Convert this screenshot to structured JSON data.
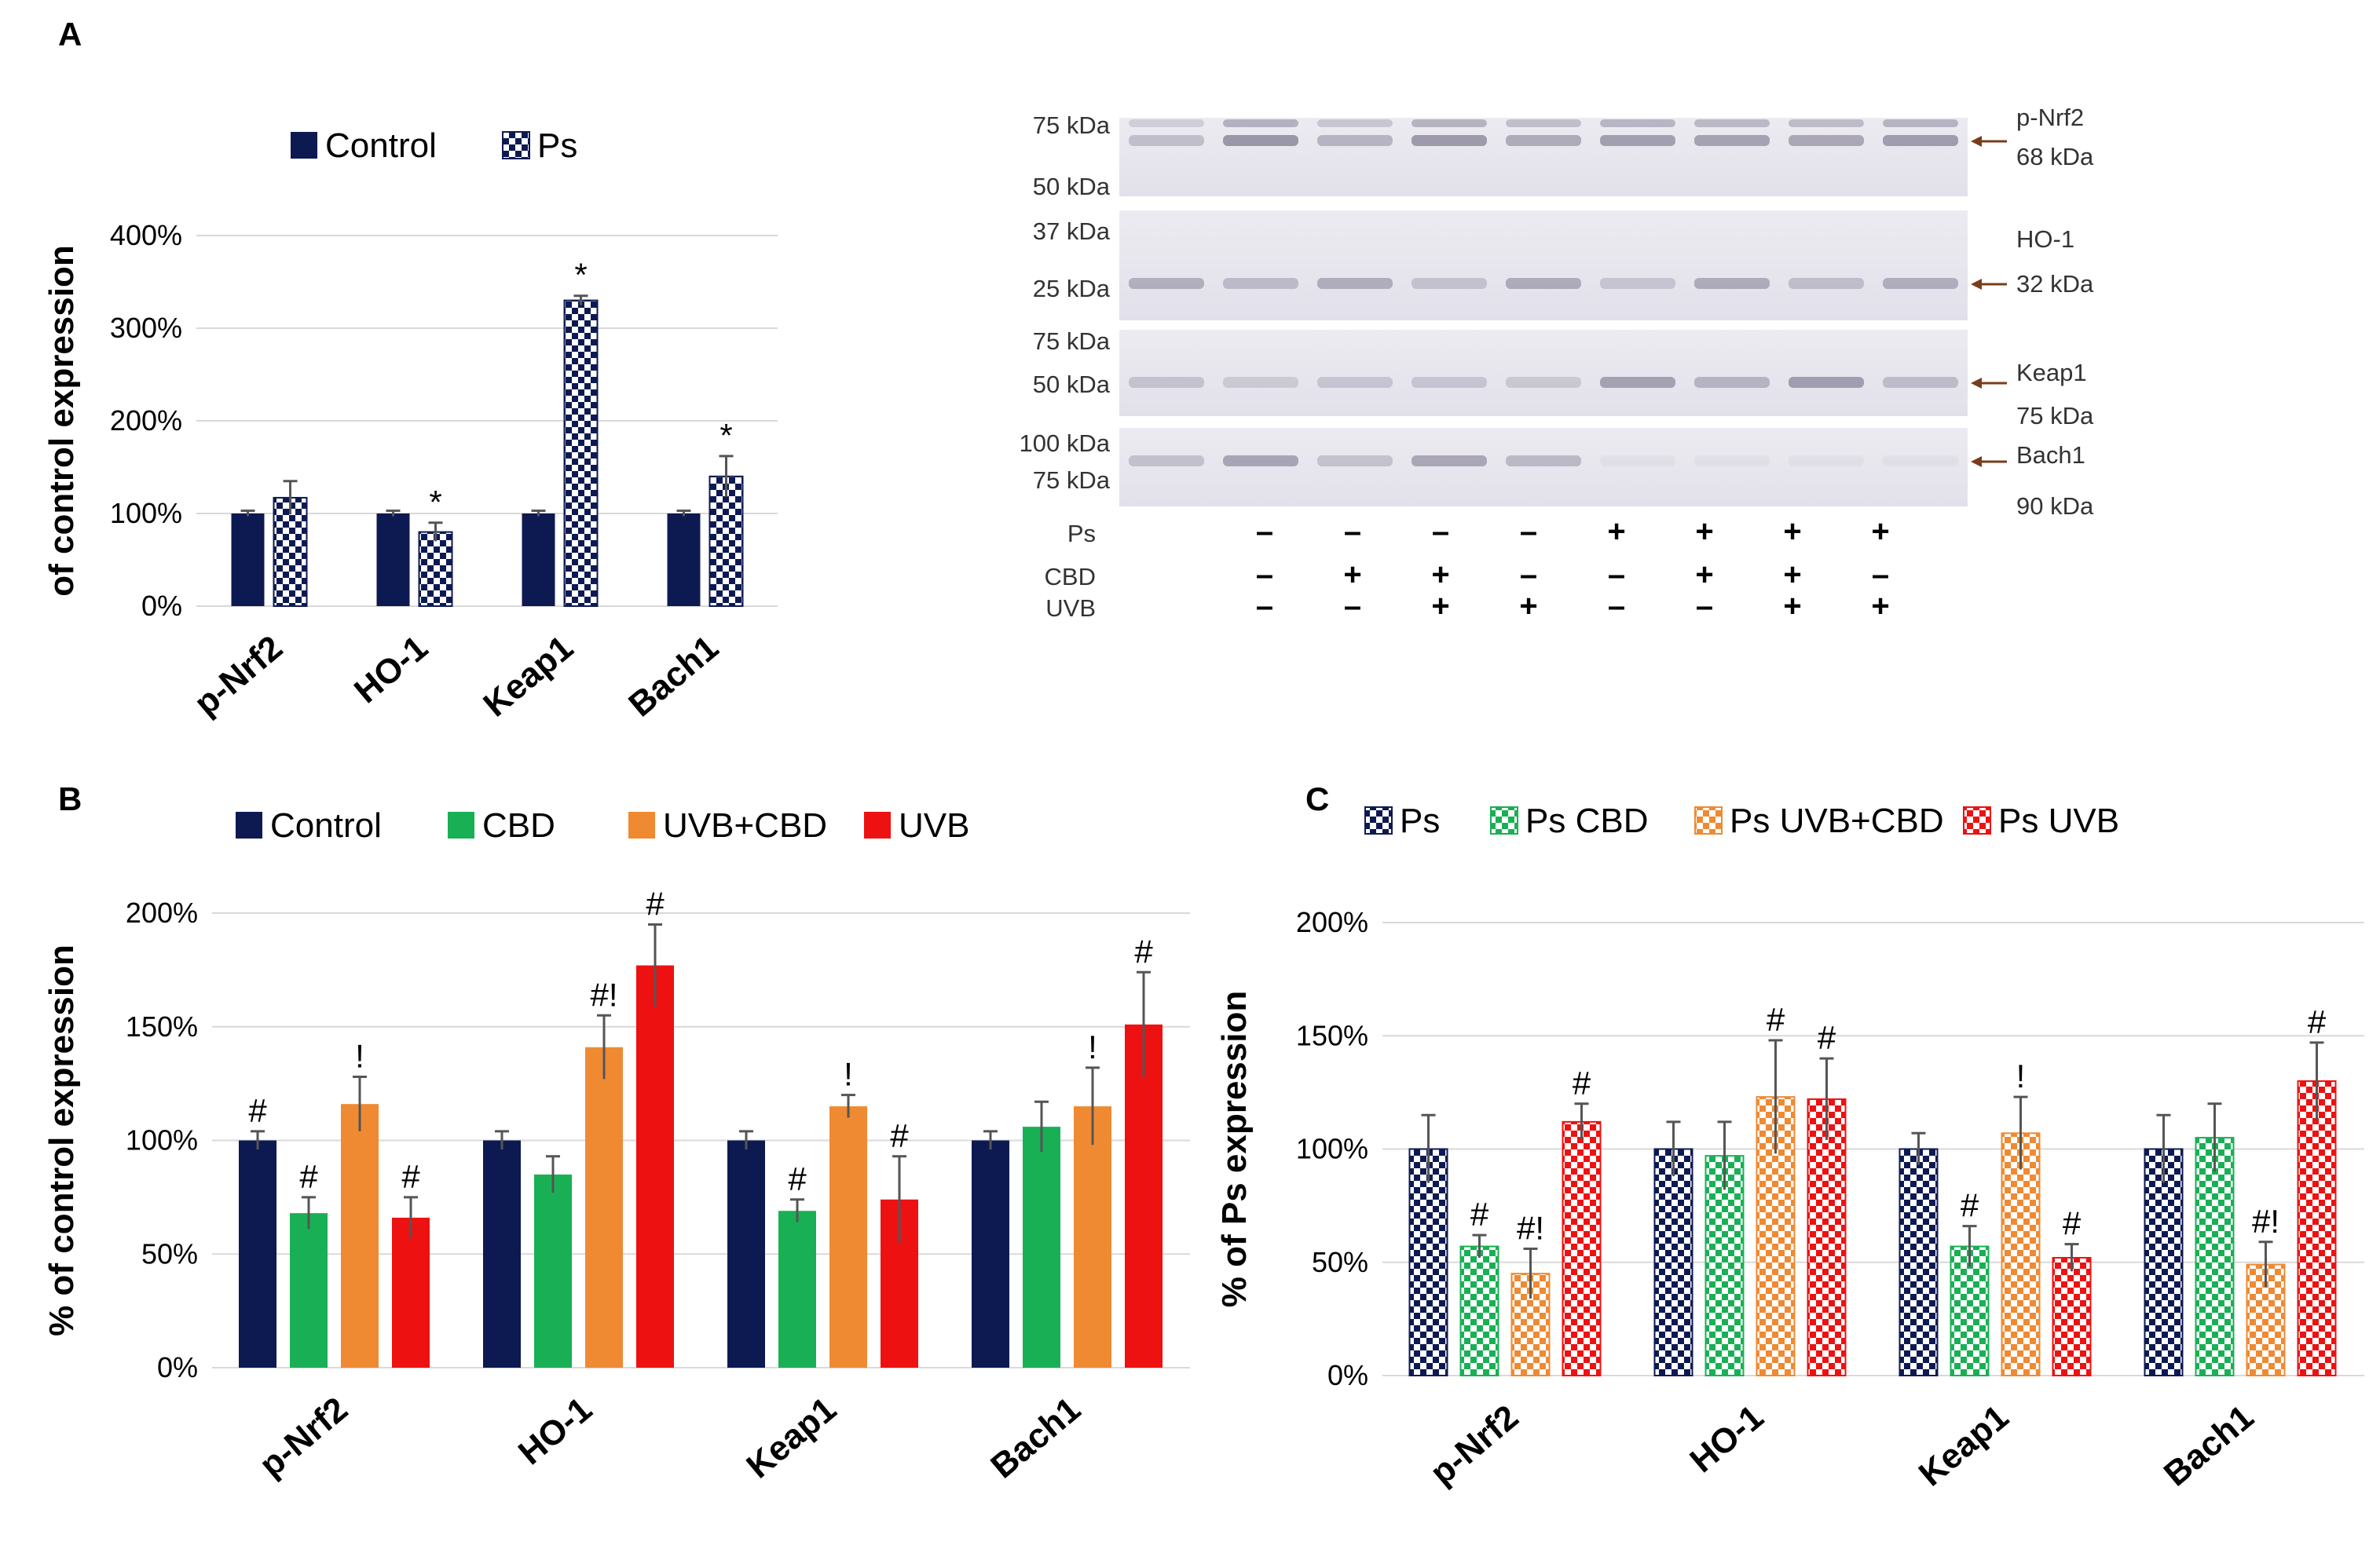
{
  "colors": {
    "control": "#0d1a52",
    "cbd": "#19b055",
    "uvb_cbd": "#ef8a32",
    "uvb": "#ee1111",
    "grid": "#d9d9d9",
    "error": "#555555"
  },
  "panel_labels": {
    "a": "A",
    "b": "B",
    "c": "C"
  },
  "chart_data": [
    {
      "id": "A",
      "type": "bar",
      "categories": [
        "p-Nrf2",
        "HO-1",
        "Keap1",
        "Bach1"
      ],
      "ylabel": "of control expression",
      "ylim": [
        0,
        400
      ],
      "yticks": [
        0,
        100,
        200,
        300,
        400
      ],
      "ytick_labels": [
        "0%",
        "100%",
        "200%",
        "300%",
        "400%"
      ],
      "legend_position": "top-left",
      "series": [
        {
          "name": "Control",
          "color": "control",
          "pattern": "solid",
          "values": [
            100,
            100,
            100,
            100
          ],
          "errors": [
            3,
            3,
            3,
            3
          ],
          "labels": [
            "",
            "",
            "",
            ""
          ]
        },
        {
          "name": "Ps",
          "color": "control",
          "pattern": "checker",
          "values": [
            117,
            80,
            330,
            140
          ],
          "errors": [
            18,
            10,
            5,
            22
          ],
          "labels": [
            "",
            "*",
            "*",
            "*"
          ]
        }
      ]
    },
    {
      "id": "B",
      "type": "bar",
      "categories": [
        "p-Nrf2",
        "HO-1",
        "Keap1",
        "Bach1"
      ],
      "ylabel": "% of control expression",
      "ylim": [
        0,
        200
      ],
      "yticks": [
        0,
        50,
        100,
        150,
        200
      ],
      "ytick_labels": [
        "0%",
        "50%",
        "100%",
        "150%",
        "200%"
      ],
      "legend_position": "top",
      "series": [
        {
          "name": "Control",
          "color": "control",
          "pattern": "solid",
          "values": [
            100,
            100,
            100,
            100
          ],
          "errors": [
            4,
            4,
            4,
            4
          ],
          "labels": [
            "#",
            "",
            "",
            ""
          ]
        },
        {
          "name": "CBD",
          "color": "cbd",
          "pattern": "solid",
          "values": [
            68,
            85,
            69,
            106
          ],
          "errors": [
            7,
            8,
            5,
            11
          ],
          "labels": [
            "#",
            "",
            "#",
            ""
          ]
        },
        {
          "name": "UVB+CBD",
          "color": "uvb_cbd",
          "pattern": "solid",
          "values": [
            116,
            141,
            115,
            115
          ],
          "errors": [
            12,
            14,
            5,
            17
          ],
          "labels": [
            "!",
            "#!",
            "!",
            "!"
          ]
        },
        {
          "name": "UVB",
          "color": "uvb",
          "pattern": "solid",
          "values": [
            66,
            177,
            74,
            151
          ],
          "errors": [
            9,
            18,
            19,
            23
          ],
          "labels": [
            "#",
            "#",
            "#",
            "#"
          ]
        }
      ]
    },
    {
      "id": "C",
      "type": "bar",
      "categories": [
        "p-Nrf2",
        "HO-1",
        "Keap1",
        "Bach1"
      ],
      "ylabel": "% of Ps expression",
      "ylim": [
        0,
        200
      ],
      "yticks": [
        0,
        50,
        100,
        150,
        200
      ],
      "ytick_labels": [
        "0%",
        "50%",
        "100%",
        "150%",
        "200%"
      ],
      "legend_position": "top",
      "series": [
        {
          "name": "Ps",
          "color": "control",
          "pattern": "checker",
          "values": [
            100,
            100,
            100,
            100
          ],
          "errors": [
            15,
            12,
            7,
            15
          ],
          "labels": [
            "",
            "",
            "",
            ""
          ]
        },
        {
          "name": "Ps CBD",
          "color": "cbd",
          "pattern": "checker",
          "values": [
            57,
            97,
            57,
            105
          ],
          "errors": [
            5,
            15,
            9,
            15
          ],
          "labels": [
            "#",
            "",
            "#",
            ""
          ]
        },
        {
          "name": "Ps UVB+CBD",
          "color": "uvb_cbd",
          "pattern": "checker",
          "values": [
            45,
            123,
            107,
            49
          ],
          "errors": [
            11,
            25,
            16,
            10
          ],
          "labels": [
            "#!",
            "#",
            "!",
            "#!"
          ]
        },
        {
          "name": "Ps UVB",
          "color": "uvb",
          "pattern": "checker",
          "values": [
            112,
            122,
            52,
            130
          ],
          "errors": [
            8,
            18,
            6,
            17
          ],
          "labels": [
            "#",
            "#",
            "#",
            "#"
          ]
        }
      ]
    }
  ],
  "blot": {
    "rows": [
      {
        "markers": [
          "75 kDa",
          "50 kDa"
        ],
        "protein": "p-Nrf2",
        "size": "68 kDa"
      },
      {
        "markers": [
          "37 kDa",
          "25 kDa"
        ],
        "protein": "HO-1",
        "size": "32 kDa"
      },
      {
        "markers": [
          "75 kDa",
          "50 kDa"
        ],
        "protein": "Keap1",
        "size": "75 kDa"
      },
      {
        "markers": [
          "100 kDa",
          "75 kDa"
        ],
        "protein": "Bach1",
        "size": "90 kDa"
      }
    ],
    "conditions": [
      {
        "name": "Ps",
        "signs": [
          "–",
          "–",
          "–",
          "–",
          "+",
          "+",
          "+",
          "+"
        ]
      },
      {
        "name": "CBD",
        "signs": [
          "–",
          "+",
          "+",
          "–",
          "–",
          "+",
          "+",
          "–"
        ]
      },
      {
        "name": "UVB",
        "signs": [
          "–",
          "–",
          "+",
          "+",
          "–",
          "–",
          "+",
          "+"
        ]
      }
    ]
  }
}
